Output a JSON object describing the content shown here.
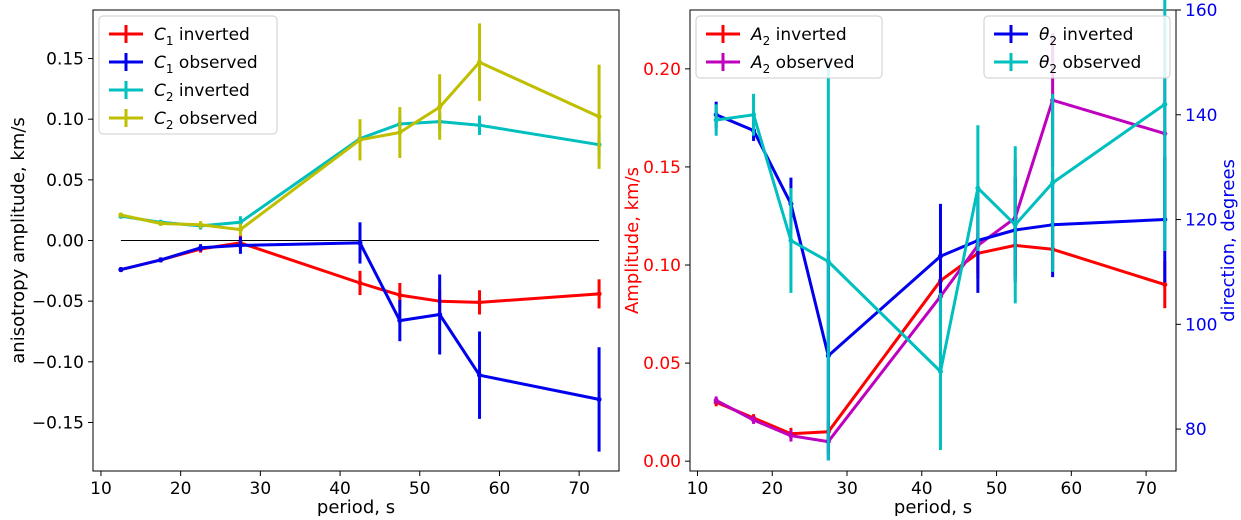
{
  "chart_data": [
    {
      "type": "line",
      "xlabel": "period, s",
      "ylabel": "anisotropy amplitude, km/s",
      "xlim": [
        9,
        75
      ],
      "ylim": [
        -0.19,
        0.19
      ],
      "xticks": [
        "10",
        "20",
        "30",
        "40",
        "50",
        "60",
        "70"
      ],
      "yticks": [
        "−0.15",
        "−0.10",
        "−0.05",
        "0.00",
        "0.05",
        "0.10",
        "0.15"
      ],
      "grid": false,
      "legend_location": "upper-left",
      "reference_line": {
        "y": 0.0,
        "x": [
          12.5,
          72.5
        ],
        "color": "#000000"
      },
      "series": [
        {
          "name": "C₁ inverted",
          "legend_base": "C",
          "legend_sub": "1",
          "legend_rest": " inverted",
          "color": "#ff0000",
          "x": [
            12.5,
            17.5,
            22.5,
            27.5,
            42.5,
            47.5,
            52.5,
            57.5,
            72.5
          ],
          "y": [
            -0.024,
            -0.016,
            -0.007,
            -0.002,
            -0.035,
            -0.045,
            -0.05,
            -0.051,
            -0.044
          ],
          "yerr": [
            0.002,
            0.002,
            0.003,
            0.006,
            0.01,
            0.01,
            0.01,
            0.01,
            0.012
          ]
        },
        {
          "name": "C₁ observed",
          "legend_base": "C",
          "legend_sub": "1",
          "legend_rest": " observed",
          "color": "#0000ee",
          "x": [
            12.5,
            17.5,
            22.5,
            27.5,
            42.5,
            47.5,
            52.5,
            57.5,
            72.5
          ],
          "y": [
            -0.024,
            -0.016,
            -0.006,
            -0.004,
            -0.002,
            -0.066,
            -0.061,
            -0.111,
            -0.131
          ],
          "yerr": [
            0.002,
            0.002,
            0.003,
            0.007,
            0.017,
            0.017,
            0.033,
            0.036,
            0.043
          ]
        },
        {
          "name": "C₂ inverted",
          "legend_base": "C",
          "legend_sub": "2",
          "legend_rest": " inverted",
          "color": "#00bfbf",
          "x": [
            12.5,
            17.5,
            22.5,
            27.5,
            42.5,
            47.5,
            52.5,
            57.5,
            72.5
          ],
          "y": [
            0.02,
            0.015,
            0.012,
            0.015,
            0.084,
            0.096,
            0.098,
            0.095,
            0.079
          ],
          "yerr": [
            0.002,
            0.002,
            0.003,
            0.005,
            0.006,
            0.006,
            0.007,
            0.008,
            0.01
          ]
        },
        {
          "name": "C₂ observed",
          "legend_base": "C",
          "legend_sub": "2",
          "legend_rest": " observed",
          "color": "#bfbf00",
          "x": [
            12.5,
            17.5,
            22.5,
            27.5,
            42.5,
            47.5,
            52.5,
            57.5,
            72.5
          ],
          "y": [
            0.021,
            0.014,
            0.013,
            0.009,
            0.083,
            0.089,
            0.11,
            0.147,
            0.102
          ],
          "yerr": [
            0.002,
            0.002,
            0.003,
            0.005,
            0.017,
            0.021,
            0.027,
            0.032,
            0.043
          ]
        }
      ]
    },
    {
      "type": "line",
      "xlabel": "period, s",
      "ylabel": "Amplitude, km/s",
      "ylabel_color": "#ff0000",
      "xlim": [
        9,
        74
      ],
      "ylim": [
        -0.005,
        0.23
      ],
      "xticks": [
        "10",
        "20",
        "30",
        "40",
        "50",
        "60",
        "70"
      ],
      "yticks": [
        "0.00",
        "0.05",
        "0.10",
        "0.15",
        "0.20"
      ],
      "ytick_color": "#ff0000",
      "y2label": "direction, degrees",
      "y2label_color": "#0000ee",
      "y2lim": [
        72,
        160
      ],
      "y2ticks": [
        "80",
        "100",
        "120",
        "140",
        "160"
      ],
      "y2tick_color": "#0000ee",
      "grid": false,
      "legend_left_location": "upper-left",
      "legend_right_location": "upper-right",
      "series": [
        {
          "name": "A₂ inverted",
          "legend_base": "A",
          "legend_sub": "2",
          "legend_rest": " inverted",
          "color": "#ff0000",
          "axis": "left",
          "x": [
            12.5,
            17.5,
            22.5,
            27.5,
            42.5,
            47.5,
            52.5,
            57.5,
            72.5
          ],
          "y": [
            0.03,
            0.022,
            0.014,
            0.015,
            0.092,
            0.106,
            0.11,
            0.108,
            0.09
          ],
          "yerr": [
            0.002,
            0.002,
            0.003,
            0.006,
            0.01,
            0.01,
            0.01,
            0.01,
            0.012
          ]
        },
        {
          "name": "A₂ observed",
          "legend_base": "A",
          "legend_sub": "2",
          "legend_rest": " observed",
          "color": "#bf00bf",
          "axis": "left",
          "x": [
            12.5,
            17.5,
            22.5,
            27.5,
            42.5,
            47.5,
            52.5,
            57.5,
            72.5
          ],
          "y": [
            0.031,
            0.021,
            0.013,
            0.01,
            0.084,
            0.11,
            0.124,
            0.184,
            0.167
          ],
          "yerr": [
            0.002,
            0.002,
            0.003,
            0.006,
            0.015,
            0.017,
            0.03,
            0.034,
            0.044
          ]
        },
        {
          "name": "θ₂ inverted",
          "legend_base": "θ",
          "legend_sub": "2",
          "legend_rest": " inverted",
          "color": "#0000ee",
          "axis": "right",
          "x": [
            12.5,
            17.5,
            22.5,
            27.5,
            42.5,
            47.5,
            52.5,
            57.5,
            72.5
          ],
          "y": [
            140,
            137,
            123,
            94,
            113,
            116,
            118,
            119,
            120
          ],
          "yerr": [
            2.5,
            2.0,
            5,
            20,
            10,
            10,
            10,
            10,
            12
          ]
        },
        {
          "name": "θ₂ observed",
          "legend_base": "θ",
          "legend_sub": "2",
          "legend_rest": " observed",
          "color": "#00bfbf",
          "axis": "right",
          "x": [
            12.5,
            17.5,
            22.5,
            27.5,
            42.5,
            47.5,
            52.5,
            57.5,
            72.5
          ],
          "y": [
            139,
            140,
            116,
            112,
            91,
            126,
            119,
            127,
            142
          ],
          "yerr": [
            3,
            4,
            10,
            38,
            15,
            12,
            15,
            17,
            28
          ]
        }
      ]
    }
  ]
}
